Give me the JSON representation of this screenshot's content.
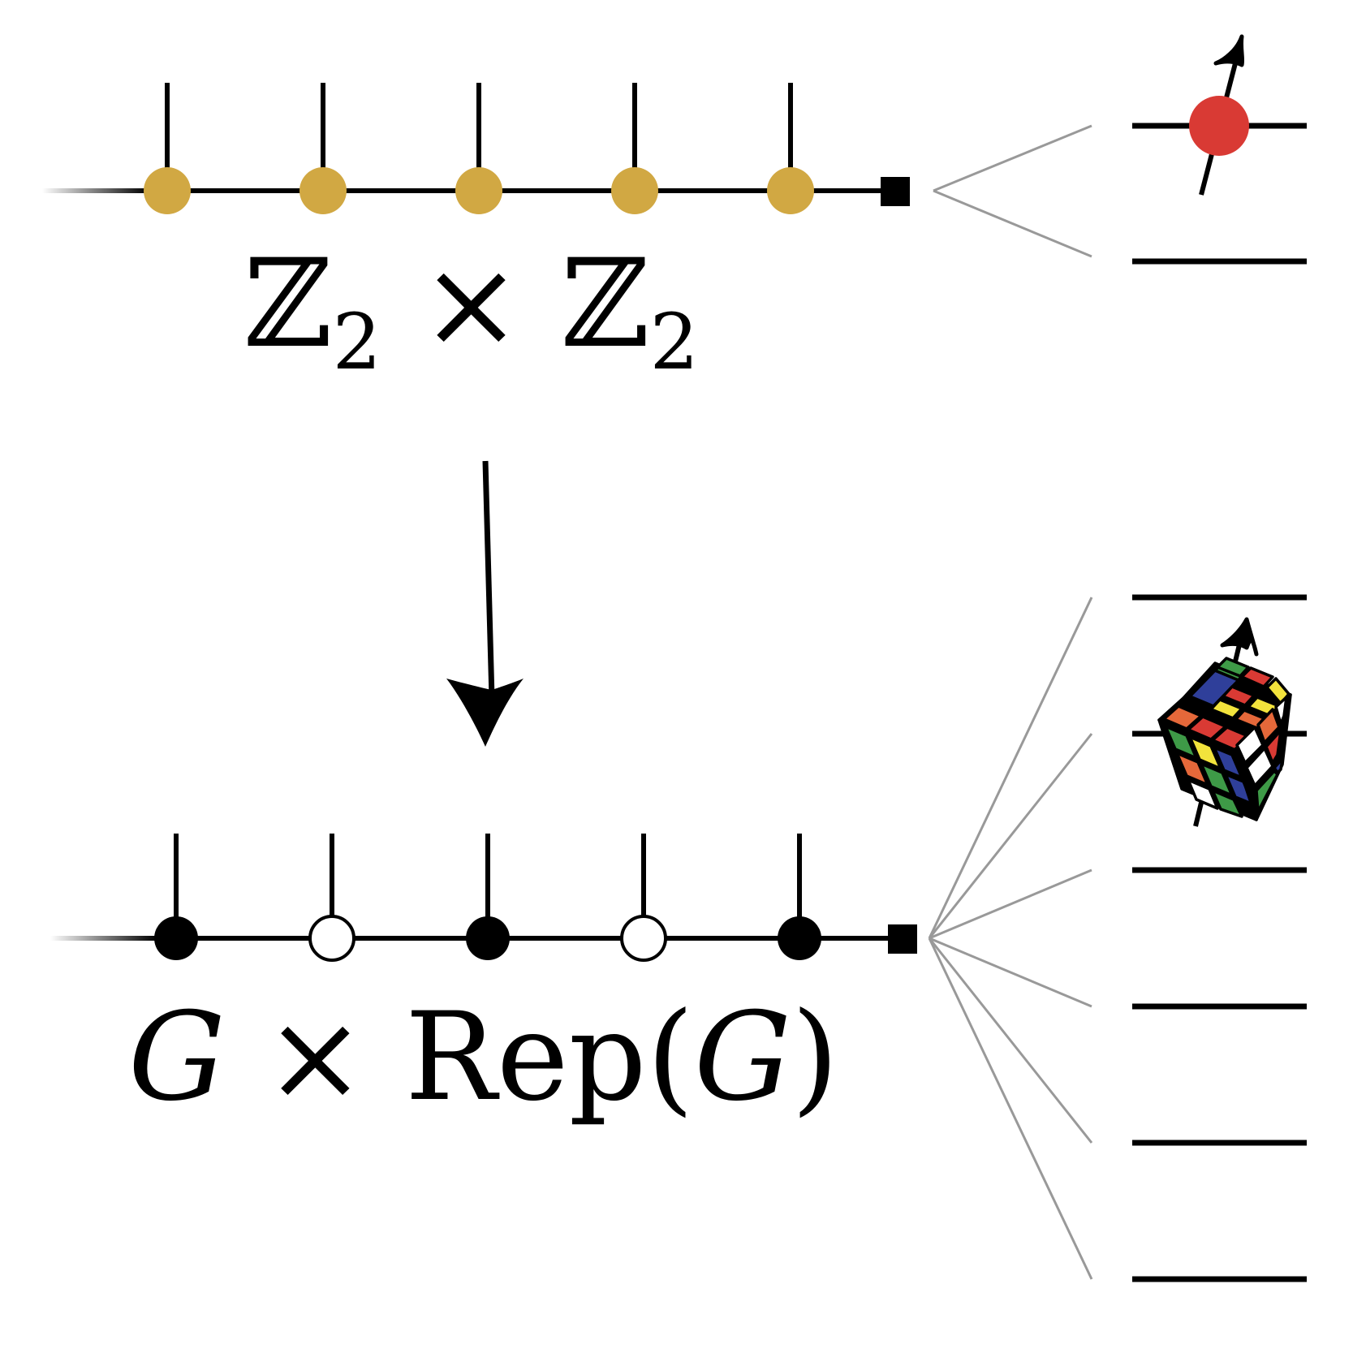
{
  "top_chain": {
    "label": {
      "group": "ℤ",
      "sub": "2",
      "times": "×",
      "group2": "ℤ",
      "sub2": "2"
    },
    "site_color": "#D1A843",
    "sites": [
      "filled",
      "filled",
      "filled",
      "filled",
      "filled"
    ]
  },
  "bottom_chain": {
    "label": {
      "g": "G",
      "times": "×",
      "rep": "Rep",
      "open": "(",
      "g2": "G",
      "close": ")"
    },
    "site_fill": "#000000",
    "sites": [
      "filled",
      "open",
      "filled",
      "open",
      "filled"
    ]
  },
  "top_levels": {
    "count": 2,
    "spin_color": "#D93A34"
  },
  "bottom_levels": {
    "count": 6
  },
  "colors": {
    "line": "#000000",
    "fan": "#999999"
  },
  "icons": [
    "down-arrow-icon",
    "spin-arrow-icon",
    "rubiks-cube-icon"
  ]
}
